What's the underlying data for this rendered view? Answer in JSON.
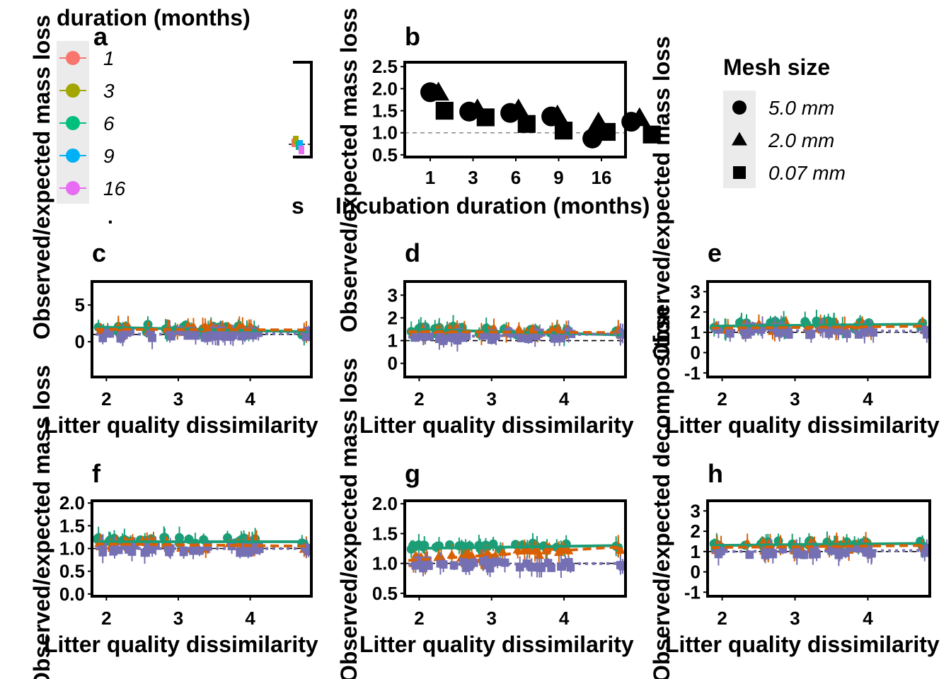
{
  "colors": {
    "months": {
      "1": "#F8766D",
      "3": "#A3A500",
      "6": "#00BF7D",
      "9": "#00B0F6",
      "16": "#E76BF3"
    },
    "mesh": {
      "5.0 mm": "#1B9E77",
      "2.0 mm": "#D95F02",
      "0.07 mm": "#7570B3"
    },
    "black": "#000000",
    "legend_bg": "#EBEBEB"
  },
  "legend_duration": {
    "title": "duration (months)",
    "items": [
      "1",
      "3",
      "6",
      "9",
      "16"
    ]
  },
  "legend_mesh": {
    "title": "Mesh size",
    "items": [
      "5.0 mm",
      "2.0 mm",
      "0.07 mm"
    ],
    "shapes": [
      "circle",
      "triangle",
      "square"
    ]
  },
  "labels": {
    "y_mass": "Observed/expected mass loss",
    "y_decomp": "Observed/expected decomposition",
    "x_diss": "Litter quality dissimilarity",
    "x_incub": "Incubation duration (months)"
  },
  "chart_data": [
    {
      "panel": "a",
      "type": "line",
      "note": "panel largely hidden behind the duration legend",
      "visible_text": "s",
      "visible_tick": "1"
    },
    {
      "panel": "b",
      "type": "scatter",
      "categories": [
        "1",
        "3",
        "6",
        "9",
        "16"
      ],
      "ylim": [
        0.45,
        2.6
      ],
      "yticks": [
        "0.5",
        "1.0",
        "1.5",
        "2.0",
        "2.5"
      ],
      "reference_line": 1.0,
      "series": [
        {
          "shape": "circle",
          "points": [
            [
              0.65,
              1.92
            ],
            [
              1.6,
              1.48
            ],
            [
              2.6,
              1.45
            ],
            [
              3.6,
              1.37
            ],
            [
              4.6,
              0.87
            ],
            [
              5.55,
              1.25
            ]
          ]
        },
        {
          "shape": "triangle",
          "points": [
            [
              0.85,
              1.9
            ],
            [
              1.8,
              1.52
            ],
            [
              2.8,
              1.52
            ],
            [
              3.75,
              1.38
            ],
            [
              4.75,
              1.22
            ],
            [
              5.75,
              1.32
            ]
          ]
        },
        {
          "shape": "square",
          "points": [
            [
              1.0,
              1.5
            ],
            [
              2.0,
              1.35
            ],
            [
              3.0,
              1.2
            ],
            [
              3.9,
              1.05
            ],
            [
              4.95,
              1.02
            ],
            [
              6.05,
              0.96
            ]
          ]
        }
      ],
      "xlabel": "Incubation duration (months)",
      "ylabel": "Observed/expected mass loss"
    },
    {
      "panel": "c",
      "type": "scatter",
      "xlim": [
        1.8,
        4.85
      ],
      "ylim": [
        -4.8,
        8.2
      ],
      "xticks": [
        2,
        3,
        4
      ],
      "yticks": [
        0,
        5
      ],
      "reference_line": 1,
      "trend": {
        "5.0 mm": [
          1.85,
          2.0,
          4.8,
          1.35
        ],
        "2.0 mm": [
          1.85,
          1.7,
          4.8,
          1.6
        ],
        "0.07 mm": [
          1.85,
          1.0,
          4.8,
          1.1
        ]
      },
      "xlabel": "Litter quality dissimilarity",
      "ylabel": "Observed/expected mass loss"
    },
    {
      "panel": "d",
      "type": "scatter",
      "xlim": [
        1.8,
        4.85
      ],
      "ylim": [
        -0.6,
        3.6
      ],
      "xticks": [
        2,
        3,
        4
      ],
      "yticks": [
        0,
        1,
        2,
        3
      ],
      "reference_line": 1,
      "trend": {
        "5.0 mm": [
          1.85,
          1.5,
          4.8,
          1.25
        ],
        "2.0 mm": [
          1.85,
          1.4,
          4.8,
          1.35
        ],
        "0.07 mm": [
          1.85,
          1.15,
          4.8,
          1.3
        ]
      },
      "xlabel": "Litter quality dissimilarity",
      "ylabel": "Observed/expected mass loss"
    },
    {
      "panel": "e",
      "type": "scatter",
      "xlim": [
        1.8,
        4.85
      ],
      "ylim": [
        -1.2,
        3.5
      ],
      "xticks": [
        2,
        3,
        4
      ],
      "yticks": [
        -1,
        0,
        1,
        2,
        3
      ],
      "reference_line": 1,
      "trend": {
        "5.0 mm": [
          1.85,
          1.3,
          4.8,
          1.4
        ],
        "2.0 mm": [
          1.85,
          1.2,
          4.8,
          1.3
        ],
        "0.07 mm": [
          1.85,
          1.1,
          4.8,
          1.05
        ]
      },
      "xlabel": "Litter quality dissimilarity",
      "ylabel": "Observed/expected decomposition"
    },
    {
      "panel": "f",
      "type": "scatter",
      "xlim": [
        1.8,
        4.85
      ],
      "ylim": [
        -0.05,
        2.05
      ],
      "xticks": [
        2,
        3,
        4
      ],
      "yticks": [
        "0.0",
        "0.5",
        "1.0",
        "1.5",
        "2.0"
      ],
      "reference_line": 1,
      "trend": {
        "5.0 mm": [
          1.85,
          1.15,
          4.8,
          1.15
        ],
        "2.0 mm": [
          1.85,
          1.1,
          4.8,
          1.05
        ],
        "0.07 mm": [
          1.85,
          1.0,
          4.8,
          1.0
        ]
      },
      "xlabel": "Litter quality dissimilarity",
      "ylabel": "Observed/expected mass loss"
    },
    {
      "panel": "g",
      "type": "scatter",
      "xlim": [
        1.8,
        4.85
      ],
      "ylim": [
        0.45,
        2.05
      ],
      "xticks": [
        2,
        3,
        4
      ],
      "yticks": [
        "0.5",
        "1.0",
        "1.5",
        "2.0"
      ],
      "reference_line": 1,
      "trend": {
        "5.0 mm": [
          1.85,
          1.25,
          4.8,
          1.3
        ],
        "2.0 mm": [
          1.85,
          1.05,
          4.8,
          1.28
        ],
        "0.07 mm": [
          1.85,
          0.98,
          4.8,
          1.0
        ]
      },
      "xlabel": "Litter quality dissimilarity",
      "ylabel": "Observed/expected mass loss"
    },
    {
      "panel": "h",
      "type": "scatter",
      "xlim": [
        1.8,
        4.85
      ],
      "ylim": [
        -1.2,
        3.5
      ],
      "xticks": [
        2,
        3,
        4
      ],
      "yticks": [
        -1,
        0,
        1,
        2,
        3
      ],
      "reference_line": 1,
      "trend": {
        "5.0 mm": [
          1.85,
          1.3,
          4.8,
          1.4
        ],
        "2.0 mm": [
          1.85,
          1.2,
          4.8,
          1.3
        ],
        "0.07 mm": [
          1.85,
          1.0,
          4.8,
          1.05
        ]
      },
      "xlabel": "Litter quality dissimilarity",
      "ylabel": "Observed/expected decomposition"
    }
  ]
}
